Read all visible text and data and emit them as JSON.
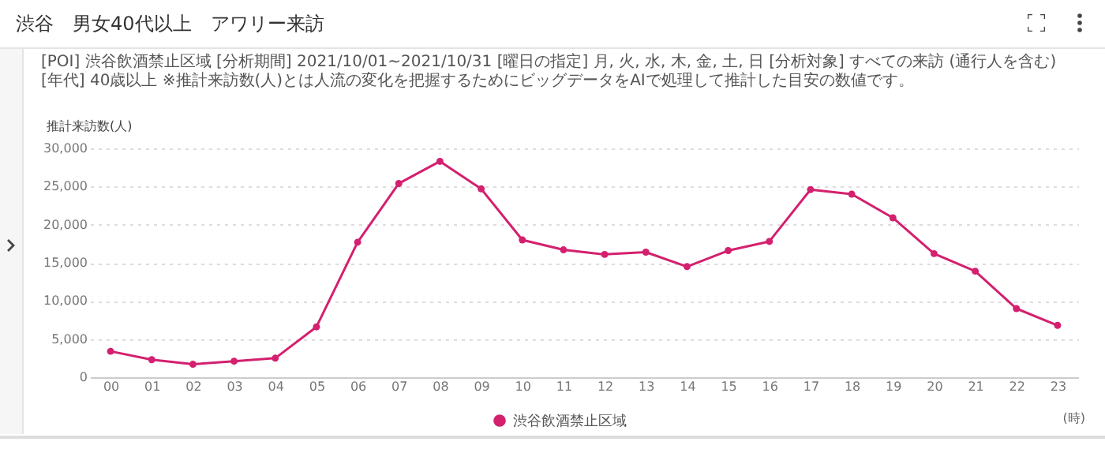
{
  "chart_data": {
    "type": "line",
    "title": "渋谷　男女40代以上　アワリー来訪",
    "subtitle": "[POI] 渋谷飲酒禁止区域  [分析期間] 2021/10/01~2021/10/31  [曜日の指定] 月, 火, 水, 木, 金, 土, 日  [分析対象] すべての来訪 (通行人を含む)  [年代] 40歳以上  ※推計来訪数(人)とは人流の変化を把握するためにビッグデータをAIで処理して推計した目安の数値です。",
    "ylabel": "推計来訪数(人)",
    "xlabel": "(時)",
    "categories": [
      "00",
      "01",
      "02",
      "03",
      "04",
      "05",
      "06",
      "07",
      "08",
      "09",
      "10",
      "11",
      "12",
      "13",
      "14",
      "15",
      "16",
      "17",
      "18",
      "19",
      "20",
      "21",
      "22",
      "23"
    ],
    "series": [
      {
        "name": "渋谷飲酒禁止区域",
        "color": "#d4206e",
        "values": [
          3400,
          2300,
          1700,
          2100,
          2500,
          6600,
          17700,
          25400,
          28300,
          24700,
          18000,
          16700,
          16100,
          16400,
          14500,
          16600,
          17800,
          24600,
          24000,
          20900,
          16200,
          13900,
          9000,
          6800
        ]
      }
    ],
    "ylim": [
      0,
      30000
    ],
    "yticks": [
      {
        "value": 0,
        "label": "0"
      },
      {
        "value": 5000,
        "label": "5,000"
      },
      {
        "value": 10000,
        "label": "10,000"
      },
      {
        "value": 15000,
        "label": "15,000"
      },
      {
        "value": 20000,
        "label": "20,000"
      },
      {
        "value": 25000,
        "label": "25,000"
      },
      {
        "value": 30000,
        "label": "30,000"
      }
    ],
    "grid": "y",
    "legend": "bottom",
    "marker": "circle",
    "line_style": "solid"
  }
}
